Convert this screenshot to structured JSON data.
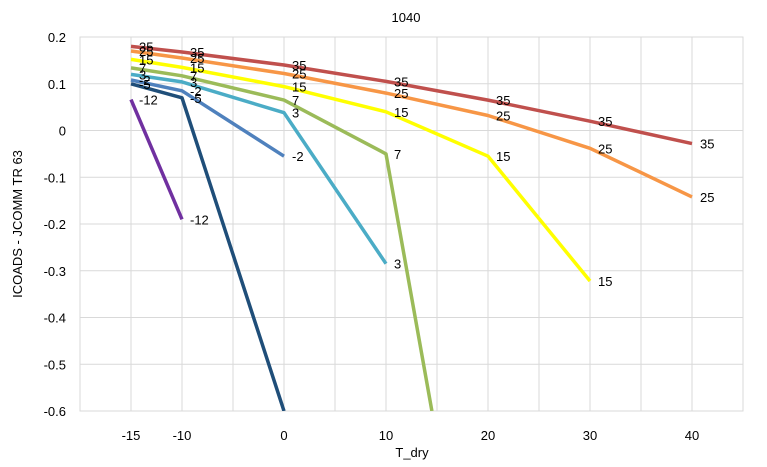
{
  "chart_data": {
    "type": "line",
    "title": "1040",
    "xlabel": "T_dry",
    "ylabel": "ICOADS - JCOMM TR 63",
    "xlim": [
      -20,
      45
    ],
    "ylim": [
      -0.6,
      0.2
    ],
    "xticks": [
      -15,
      -10,
      0,
      10,
      20,
      30,
      40
    ],
    "xtick_labels": [
      "-15",
      "-10",
      "0",
      "10",
      "20",
      "30",
      "40"
    ],
    "yticks": [
      0.2,
      0.1,
      0,
      -0.1,
      -0.2,
      -0.3,
      -0.4,
      -0.5,
      -0.6
    ],
    "ytick_labels": [
      "0.2",
      "0.1",
      "0",
      "-0.1",
      "-0.2",
      "-0.3",
      "-0.4",
      "-0.5",
      "-0.6"
    ],
    "grid": true,
    "series": [
      {
        "name": "35",
        "color": "#c0504d",
        "labels": [
          "35",
          "35",
          "35",
          "35",
          "35",
          "35",
          "35"
        ],
        "points": [
          [
            -15,
            0.18
          ],
          [
            -10,
            0.168
          ],
          [
            0,
            0.14
          ],
          [
            10,
            0.105
          ],
          [
            20,
            0.065
          ],
          [
            30,
            0.02
          ],
          [
            40,
            -0.028
          ]
        ]
      },
      {
        "name": "25",
        "color": "#f79646",
        "labels": [
          "25",
          "25",
          "25",
          "25",
          "25",
          "25",
          "25"
        ],
        "points": [
          [
            -15,
            0.17
          ],
          [
            -10,
            0.155
          ],
          [
            0,
            0.122
          ],
          [
            10,
            0.08
          ],
          [
            20,
            0.032
          ],
          [
            30,
            -0.038
          ],
          [
            40,
            -0.142
          ]
        ]
      },
      {
        "name": "15",
        "color": "#ffff00",
        "labels": [
          "15",
          "15",
          "15",
          "15",
          "15",
          "15"
        ],
        "points": [
          [
            -15,
            0.152
          ],
          [
            -10,
            0.135
          ],
          [
            0,
            0.094
          ],
          [
            10,
            0.04
          ],
          [
            20,
            -0.055
          ],
          [
            30,
            -0.322
          ]
        ]
      },
      {
        "name": "7",
        "color": "#9bbb59",
        "labels": [
          "7",
          "7",
          "7",
          "7"
        ],
        "points": [
          [
            -15,
            0.134
          ],
          [
            -10,
            0.117
          ],
          [
            0,
            0.065
          ],
          [
            10,
            -0.05
          ],
          [
            14.5,
            -0.6
          ]
        ]
      },
      {
        "name": "3",
        "color": "#4bacc6",
        "labels": [
          "3",
          "3",
          "3",
          "3"
        ],
        "points": [
          [
            -15,
            0.12
          ],
          [
            -10,
            0.104
          ],
          [
            0,
            0.038
          ],
          [
            10,
            -0.285
          ]
        ]
      },
      {
        "name": "-2",
        "color": "#4f81bd",
        "labels": [
          "-2",
          "-2",
          "-2"
        ],
        "points": [
          [
            -15,
            0.108
          ],
          [
            -10,
            0.085
          ],
          [
            0,
            -0.055
          ]
        ]
      },
      {
        "name": "-5",
        "color": "#1f4e79",
        "labels": [
          "-5",
          "-5"
        ],
        "points": [
          [
            -15,
            0.1
          ],
          [
            -10,
            0.07
          ],
          [
            0,
            -0.6
          ]
        ]
      },
      {
        "name": "-12",
        "color": "#7030a0",
        "labels": [
          "-12",
          "-12"
        ],
        "points": [
          [
            -15,
            0.066
          ],
          [
            -10,
            -0.19
          ]
        ]
      }
    ]
  }
}
